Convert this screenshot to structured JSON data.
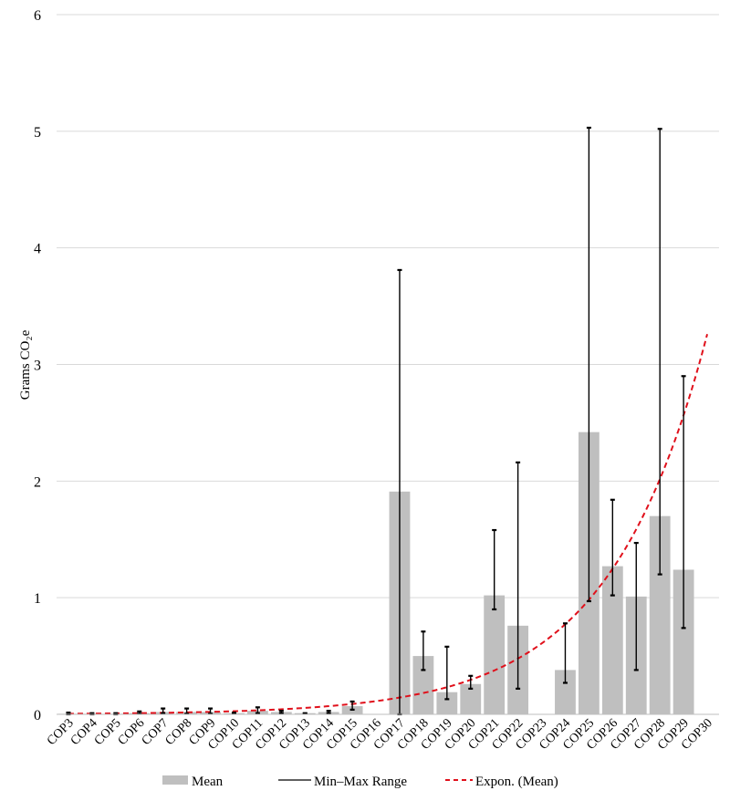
{
  "chart_data": {
    "type": "bar",
    "ylabel": "Grams CO₂e",
    "ylim": [
      0,
      6
    ],
    "yticks": [
      0,
      1,
      2,
      3,
      4,
      5,
      6
    ],
    "grid": true,
    "legend_position": "bottom",
    "categories": [
      "COP3",
      "COP4",
      "COP5",
      "COP6",
      "COP7",
      "COP8",
      "COP9",
      "COP10",
      "COP11",
      "COP12",
      "COP13",
      "COP14",
      "COP15",
      "COP16",
      "COP17",
      "COP18",
      "COP19",
      "COP20",
      "COP21",
      "COP22",
      "COP23",
      "COP24",
      "COP25",
      "COP26",
      "COP27",
      "COP28",
      "COP29",
      "COP30"
    ],
    "series": [
      {
        "name": "Mean",
        "color": "#bfbfbf",
        "values": [
          0.005,
          0.005,
          0.005,
          0.01,
          0.02,
          0.02,
          0.02,
          0.01,
          0.03,
          0.02,
          0.01,
          0.02,
          0.07,
          0,
          1.91,
          0.5,
          0.19,
          0.26,
          1.02,
          0.76,
          0,
          0.38,
          2.42,
          1.27,
          1.01,
          1.7,
          1.24,
          0
        ]
      },
      {
        "name": "Min–Max Range",
        "color": "#000000",
        "min": [
          0,
          0,
          0,
          0.005,
          0.01,
          0.005,
          0.005,
          0.005,
          0.01,
          0.01,
          0.005,
          0.01,
          0.04,
          null,
          0,
          0.38,
          0.13,
          0.22,
          0.9,
          0.22,
          null,
          0.27,
          0.97,
          1.02,
          0.38,
          1.2,
          0.74,
          null
        ],
        "max": [
          0.015,
          0.01,
          0.01,
          0.025,
          0.05,
          0.05,
          0.05,
          0.015,
          0.06,
          0.03,
          0.01,
          0.03,
          0.11,
          null,
          3.81,
          0.71,
          0.58,
          0.33,
          1.58,
          2.16,
          null,
          0.78,
          5.03,
          1.84,
          1.47,
          5.02,
          2.9,
          null
        ]
      },
      {
        "name": "Expon. (Mean)",
        "color": "#e0101b",
        "trend_start": 0.005,
        "trend_end": 3.26
      }
    ]
  }
}
